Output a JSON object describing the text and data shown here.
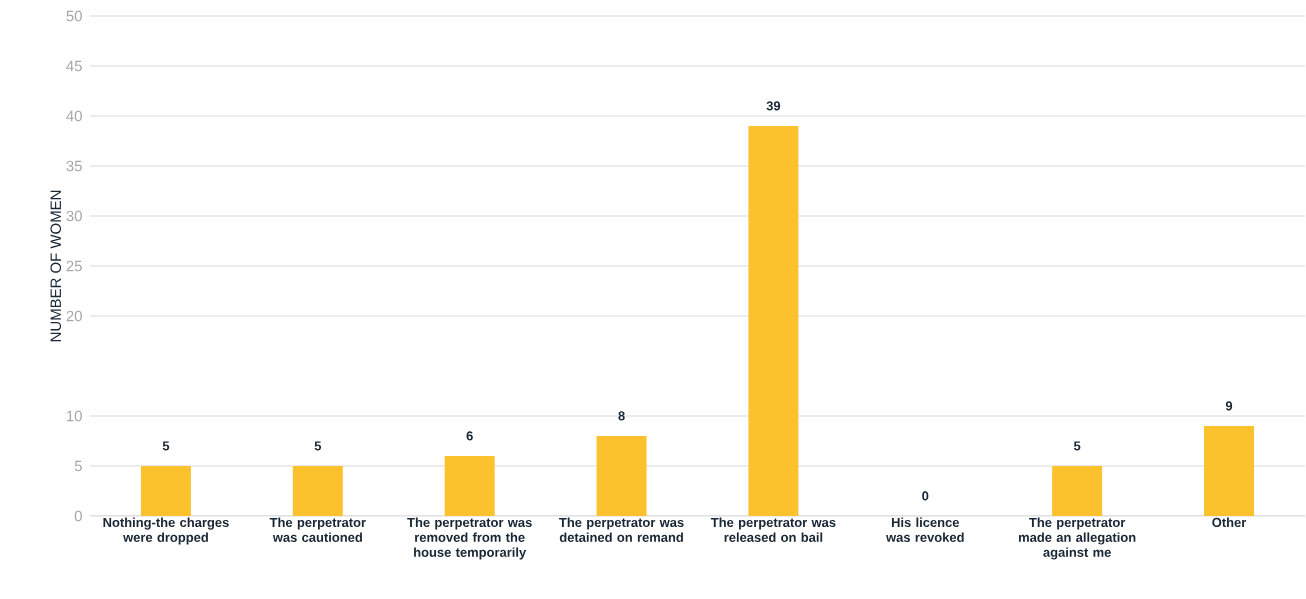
{
  "chart_data": {
    "type": "bar",
    "ylabel": "NUMBER OF WOMEN",
    "categories": [
      "Nothing-the charges were dropped",
      "The perpetrator was cautioned",
      "The perpetrator was removed from the house temporarily",
      "The perpetrator was  detained on remand",
      "The perpetrator was  released on bail",
      "His licence was revoked",
      "The perpetrator made an allegation against me",
      "Other"
    ],
    "values": [
      5,
      5,
      6,
      8,
      39,
      0,
      5,
      9
    ],
    "color": "#fbc22e",
    "ylim": [
      0,
      50
    ],
    "yticks": [
      0,
      5,
      10,
      20,
      25,
      30,
      35,
      40,
      45,
      50
    ],
    "grid": "y",
    "data_labels": true
  }
}
